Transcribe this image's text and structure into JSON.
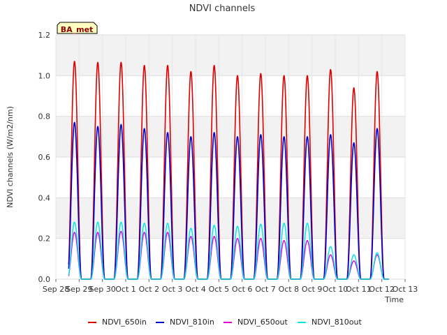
{
  "chart_data": {
    "type": "line",
    "title": "NDVI channels",
    "xlabel": "Time",
    "ylabel": "NDVI channels (W/m2/nm)",
    "badge": "BA_met",
    "xlim": [
      0,
      15
    ],
    "ylim": [
      0,
      1.2
    ],
    "yticks": [
      0.0,
      0.2,
      0.4,
      0.6,
      0.8,
      1.0,
      1.2
    ],
    "ytick_labels": [
      "0.0",
      "0.2",
      "0.4",
      "0.6",
      "0.8",
      "1.0",
      "1.2"
    ],
    "xticks": [
      0,
      1,
      2,
      3,
      4,
      5,
      6,
      7,
      8,
      9,
      10,
      11,
      12,
      13,
      14,
      15
    ],
    "xtick_labels": [
      "Sep 28",
      "Sep 29",
      "Sep 30",
      "Oct 1",
      "Oct 2",
      "Oct 3",
      "Oct 4",
      "Oct 5",
      "Oct 6",
      "Oct 7",
      "Oct 8",
      "Oct 9",
      "Oct 10",
      "Oct 11",
      "Oct 12",
      "Oct 13"
    ],
    "day_peak_centers": [
      0.8,
      1.8,
      2.8,
      3.8,
      4.8,
      5.8,
      6.8,
      7.8,
      8.8,
      9.8,
      10.8,
      11.8,
      12.8,
      13.8
    ],
    "day_half_width": 0.3,
    "grid": true,
    "legend_position": "bottom",
    "series": [
      {
        "name": "NDVI_650in",
        "color": "#dd0000",
        "daily_peaks": [
          1.07,
          1.065,
          1.065,
          1.05,
          1.05,
          1.02,
          1.05,
          1.0,
          1.01,
          1.0,
          1.0,
          1.03,
          0.94,
          1.02
        ]
      },
      {
        "name": "NDVI_810in",
        "color": "#0000cc",
        "daily_peaks": [
          0.77,
          0.75,
          0.76,
          0.74,
          0.72,
          0.7,
          0.72,
          0.7,
          0.71,
          0.7,
          0.7,
          0.71,
          0.67,
          0.74
        ]
      },
      {
        "name": "NDVI_650out",
        "color": "#dd00dd",
        "daily_peaks": [
          0.23,
          0.23,
          0.235,
          0.23,
          0.23,
          0.21,
          0.21,
          0.2,
          0.2,
          0.19,
          0.19,
          0.12,
          0.09,
          0.12
        ]
      },
      {
        "name": "NDVI_810out",
        "color": "#00e5e5",
        "daily_peaks": [
          0.28,
          0.28,
          0.28,
          0.275,
          0.275,
          0.25,
          0.265,
          0.26,
          0.27,
          0.275,
          0.275,
          0.16,
          0.12,
          0.13
        ]
      }
    ]
  }
}
